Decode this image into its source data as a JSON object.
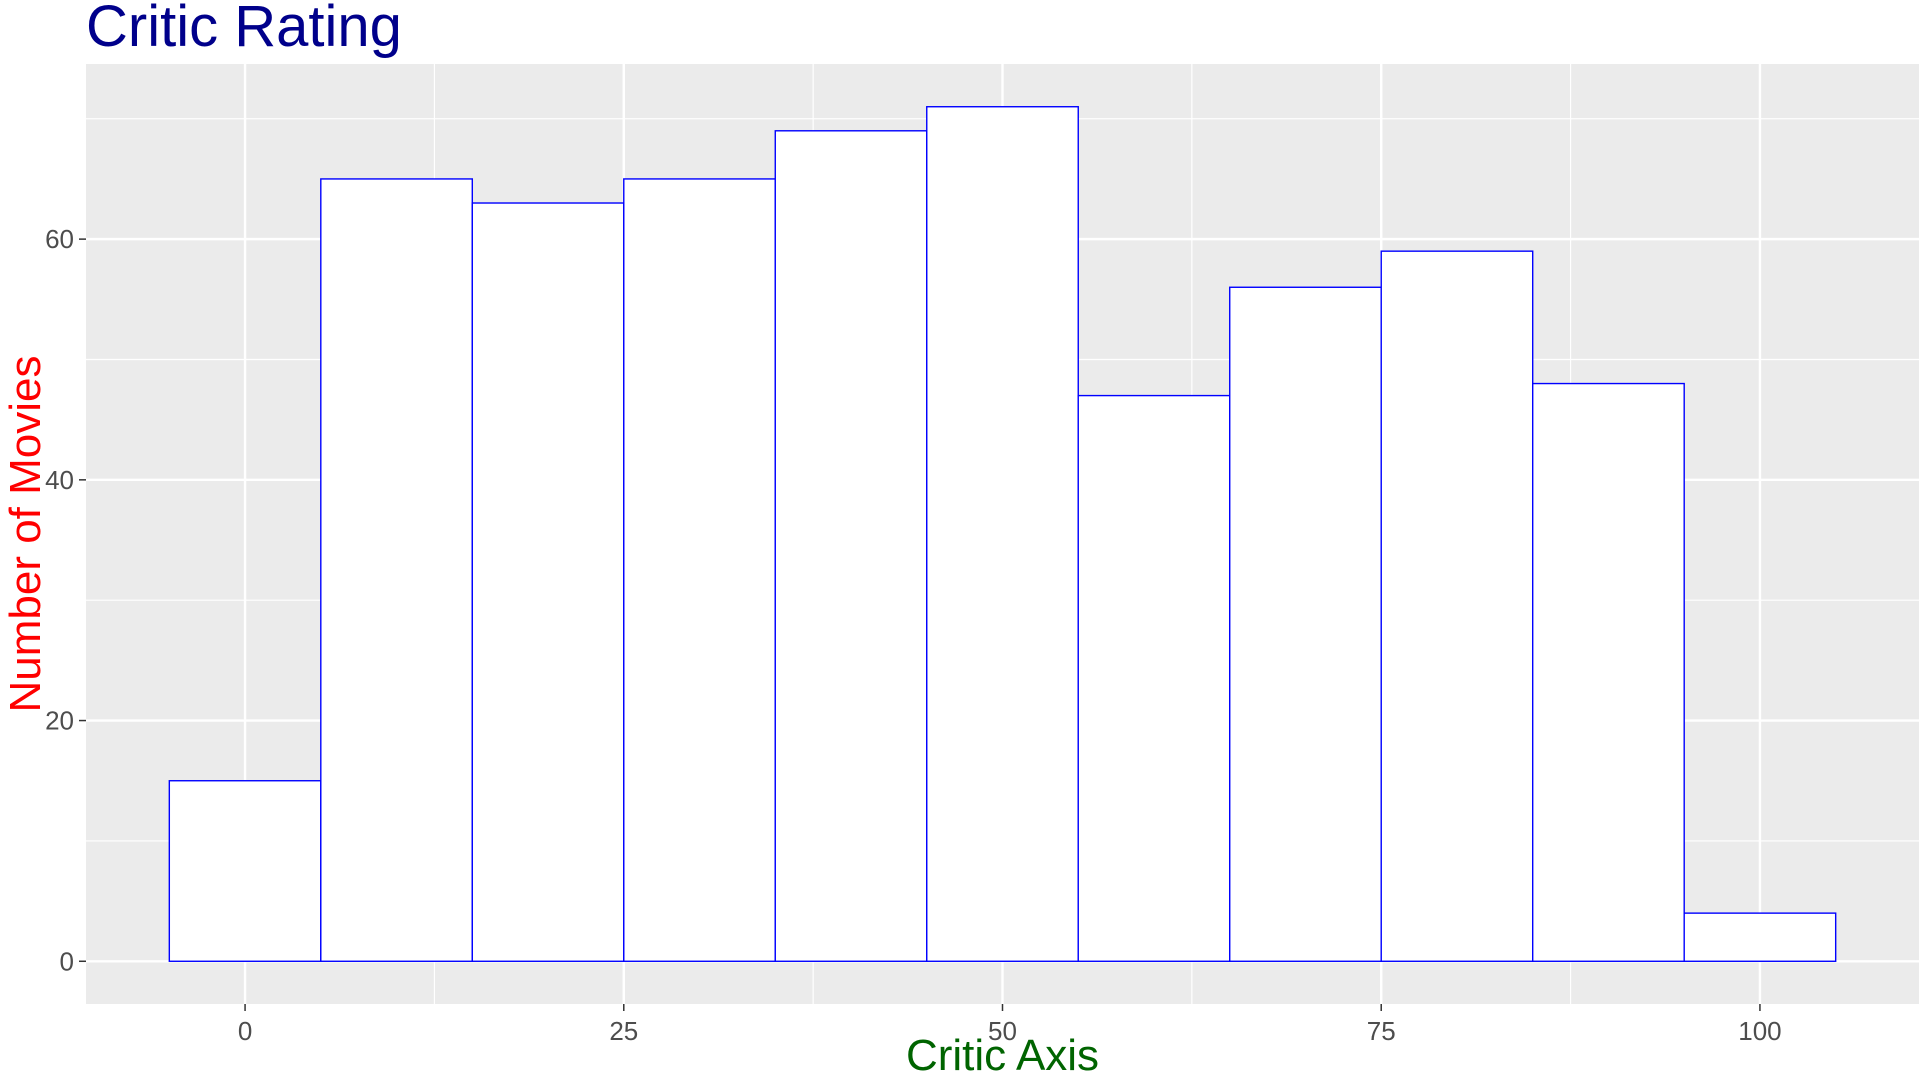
{
  "chart_data": {
    "type": "bar",
    "title": "Critic Rating",
    "xlabel": "Critic Axis",
    "ylabel": "Number of Movies",
    "bin_width": 10,
    "bins": [
      {
        "start": -5,
        "end": 5,
        "count": 15
      },
      {
        "start": 5,
        "end": 15,
        "count": 65
      },
      {
        "start": 15,
        "end": 25,
        "count": 63
      },
      {
        "start": 25,
        "end": 35,
        "count": 65
      },
      {
        "start": 35,
        "end": 45,
        "count": 69
      },
      {
        "start": 45,
        "end": 55,
        "count": 71
      },
      {
        "start": 55,
        "end": 65,
        "count": 47
      },
      {
        "start": 65,
        "end": 75,
        "count": 56
      },
      {
        "start": 75,
        "end": 85,
        "count": 59
      },
      {
        "start": 85,
        "end": 95,
        "count": 48
      },
      {
        "start": 95,
        "end": 105,
        "count": 4
      }
    ],
    "xlim": [
      -10.5,
      110.5
    ],
    "ylim": [
      -3.55,
      74.55
    ],
    "xticks": [
      0,
      25,
      50,
      75,
      100
    ],
    "yticks": [
      0,
      20,
      40,
      60
    ],
    "x_tick_labels": [
      "0",
      "25",
      "50",
      "75",
      "100"
    ],
    "y_tick_labels": [
      "0",
      "20",
      "40",
      "60"
    ],
    "grid": true,
    "colors": {
      "panel_background": "#ebebeb",
      "grid": "#ffffff",
      "bar_fill": "#ffffff",
      "bar_outline": "#0000ff",
      "title": "#00008b",
      "xlabel": "#006400",
      "ylabel": "#ff0000",
      "tick_label": "#4d4d4d",
      "tick_mark": "#333333"
    }
  }
}
